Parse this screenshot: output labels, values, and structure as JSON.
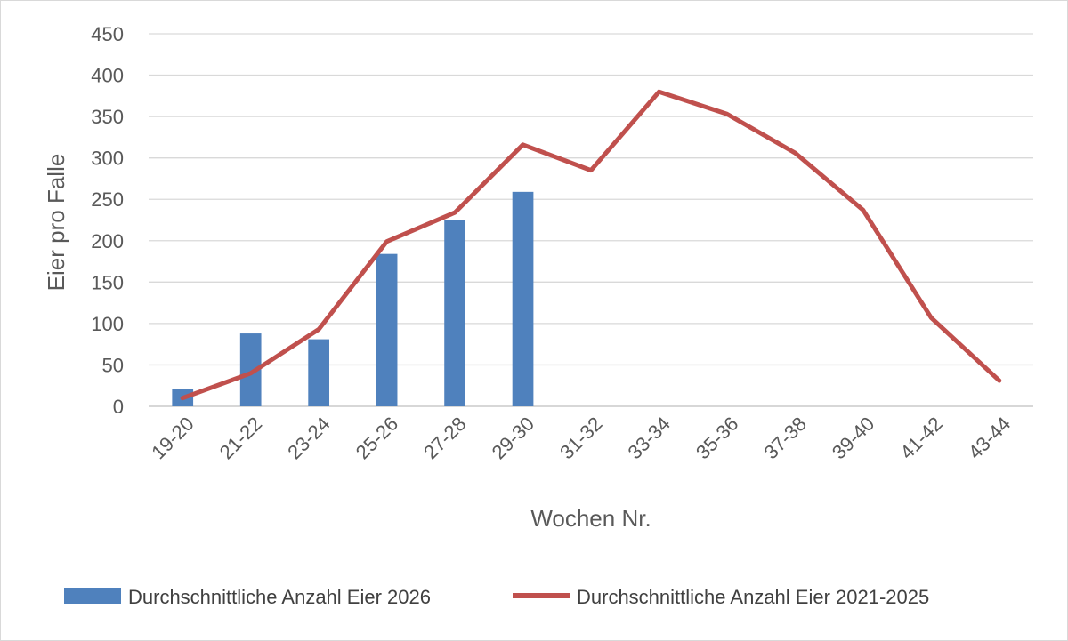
{
  "chart_data": {
    "type": "bar",
    "categories": [
      "19-20",
      "21-22",
      "23-24",
      "25-26",
      "27-28",
      "29-30",
      "31-32",
      "33-34",
      "35-36",
      "37-38",
      "39-40",
      "41-42",
      "43-44"
    ],
    "series": [
      {
        "name": "Durchschnittliche Anzahl Eier 2026",
        "type": "bar",
        "color": "#4f81bd",
        "values": [
          21,
          88,
          81,
          184,
          225,
          259,
          null,
          null,
          null,
          null,
          null,
          null,
          null
        ]
      },
      {
        "name": "Durchschnittliche Anzahl Eier 2021-2025",
        "type": "line",
        "color": "#c0504d",
        "values": [
          10,
          40,
          93,
          199,
          234,
          316,
          285,
          380,
          353,
          306,
          237,
          107,
          31
        ]
      }
    ],
    "xlabel": "Wochen Nr.",
    "ylabel": "Eier pro Falle",
    "ylim": [
      0,
      450
    ],
    "yticks": [
      0,
      50,
      100,
      150,
      200,
      250,
      300,
      350,
      400,
      450
    ],
    "grid": true,
    "legend_position": "bottom"
  }
}
